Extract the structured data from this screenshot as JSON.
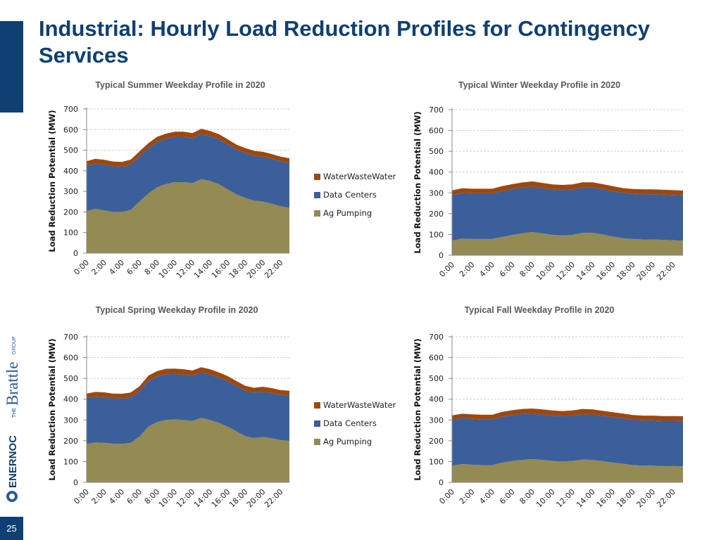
{
  "slide": {
    "title": "Industrial: Hourly Load Reduction Profiles for Contingency Services",
    "page_number": "25",
    "logos": {
      "company1": "ENERNOC",
      "company2_prefix": "THE",
      "company2": "Brattle",
      "company2_suffix": "GROUP"
    }
  },
  "colors": {
    "accent": "#0f3f73",
    "ag_pumping": "#948a54",
    "data_centers": "#3a5f9b",
    "water_waste_water": "#9e480e"
  },
  "chart_data": [
    {
      "type": "area",
      "stacked": true,
      "title": "Typical Summer Weekday Profile in 2020",
      "ylabel": "Load Reduction Potential (MW)",
      "xlabel": "",
      "ylim": [
        0,
        700
      ],
      "yticks": [
        "0",
        "100",
        "200",
        "300",
        "400",
        "500",
        "600",
        "700"
      ],
      "x_ticklabels": [
        "0:00",
        "2:00",
        "4:00",
        "6:00",
        "8:00",
        "10:00",
        "12:00",
        "14:00",
        "16:00",
        "18:00",
        "20:00",
        "22:00"
      ],
      "grid": true,
      "legend_position": "right",
      "series": [
        {
          "name": "Ag Pumping",
          "color": "#948a54",
          "values": [
            205,
            215,
            208,
            200,
            200,
            210,
            250,
            290,
            320,
            335,
            345,
            345,
            340,
            360,
            350,
            335,
            310,
            285,
            268,
            255,
            250,
            240,
            228,
            220
          ]
        },
        {
          "name": "Data Centers",
          "color": "#3a5f9b",
          "values": [
            220,
            220,
            222,
            222,
            220,
            220,
            220,
            220,
            220,
            220,
            220,
            220,
            218,
            218,
            218,
            218,
            218,
            218,
            218,
            218,
            218,
            218,
            218,
            218
          ]
        },
        {
          "name": "WaterWasteWater",
          "color": "#9e480e",
          "values": [
            22,
            23,
            23,
            23,
            23,
            24,
            24,
            24,
            25,
            25,
            25,
            25,
            25,
            26,
            25,
            25,
            25,
            24,
            24,
            24,
            24,
            23,
            23,
            23
          ]
        }
      ]
    },
    {
      "type": "area",
      "stacked": true,
      "title": "Typical Winter Weekday Profile in 2020",
      "ylabel": "Load Reduction Potential (MW)",
      "xlabel": "",
      "ylim": [
        0,
        700
      ],
      "yticks": [
        "0",
        "100",
        "200",
        "300",
        "400",
        "500",
        "600",
        "700"
      ],
      "x_ticklabels": [
        "0:00",
        "2:00",
        "4:00",
        "6:00",
        "8:00",
        "10:00",
        "12:00",
        "14:00",
        "16:00",
        "18:00",
        "20:00",
        "22:00"
      ],
      "grid": true,
      "series": [
        {
          "name": "Ag Pumping",
          "color": "#948a54",
          "values": [
            70,
            80,
            78,
            78,
            78,
            88,
            98,
            105,
            112,
            105,
            98,
            95,
            98,
            108,
            108,
            100,
            90,
            82,
            78,
            76,
            76,
            74,
            72,
            70
          ]
        },
        {
          "name": "Data Centers",
          "color": "#3a5f9b",
          "values": [
            220,
            220,
            220,
            220,
            220,
            220,
            220,
            220,
            218,
            218,
            218,
            218,
            218,
            218,
            218,
            218,
            218,
            218,
            218,
            218,
            218,
            218,
            218,
            218
          ]
        },
        {
          "name": "WaterWasteWater",
          "color": "#9e480e",
          "values": [
            22,
            22,
            22,
            22,
            22,
            24,
            24,
            25,
            25,
            25,
            25,
            25,
            25,
            25,
            25,
            24,
            24,
            23,
            23,
            23,
            23,
            23,
            23,
            23
          ]
        }
      ]
    },
    {
      "type": "area",
      "stacked": true,
      "title": "Typical Spring Weekday Profile in 2020",
      "ylabel": "Load Reduction Potential (MW)",
      "xlabel": "",
      "ylim": [
        0,
        700
      ],
      "yticks": [
        "0",
        "100",
        "200",
        "300",
        "400",
        "500",
        "600",
        "700"
      ],
      "x_ticklabels": [
        "0:00",
        "2:00",
        "4:00",
        "6:00",
        "8:00",
        "10:00",
        "12:00",
        "14:00",
        "16:00",
        "18:00",
        "20:00",
        "22:00"
      ],
      "grid": true,
      "legend_position": "right",
      "series": [
        {
          "name": "Ag Pumping",
          "color": "#948a54",
          "values": [
            185,
            192,
            190,
            186,
            185,
            190,
            220,
            268,
            290,
            300,
            303,
            300,
            295,
            310,
            300,
            286,
            268,
            245,
            222,
            213,
            218,
            212,
            203,
            200
          ]
        },
        {
          "name": "Data Centers",
          "color": "#3a5f9b",
          "values": [
            220,
            220,
            220,
            218,
            218,
            218,
            218,
            220,
            220,
            220,
            218,
            218,
            218,
            218,
            218,
            218,
            218,
            218,
            218,
            218,
            218,
            218,
            218,
            218
          ]
        },
        {
          "name": "WaterWasteWater",
          "color": "#9e480e",
          "values": [
            22,
            23,
            23,
            23,
            23,
            24,
            24,
            25,
            25,
            26,
            26,
            26,
            25,
            26,
            26,
            25,
            25,
            24,
            24,
            24,
            24,
            23,
            23,
            23
          ]
        }
      ]
    },
    {
      "type": "area",
      "stacked": true,
      "title": "Typical Fall Weekday Profile in 2020",
      "ylabel": "Load Reduction Potential (MW)",
      "xlabel": "",
      "ylim": [
        0,
        700
      ],
      "yticks": [
        "0",
        "100",
        "200",
        "300",
        "400",
        "500",
        "600",
        "700"
      ],
      "x_ticklabels": [
        "0:00",
        "2:00",
        "4:00",
        "6:00",
        "8:00",
        "10:00",
        "12:00",
        "14:00",
        "16:00",
        "18:00",
        "20:00",
        "22:00"
      ],
      "grid": true,
      "series": [
        {
          "name": "Ag Pumping",
          "color": "#948a54",
          "values": [
            80,
            88,
            85,
            83,
            83,
            95,
            103,
            108,
            112,
            108,
            103,
            100,
            103,
            110,
            108,
            102,
            95,
            90,
            83,
            80,
            80,
            78,
            78,
            77
          ]
        },
        {
          "name": "Data Centers",
          "color": "#3a5f9b",
          "values": [
            220,
            220,
            220,
            220,
            220,
            220,
            220,
            220,
            218,
            218,
            218,
            218,
            218,
            218,
            218,
            218,
            218,
            218,
            218,
            218,
            218,
            218,
            218,
            218
          ]
        },
        {
          "name": "WaterWasteWater",
          "color": "#9e480e",
          "values": [
            22,
            22,
            22,
            22,
            22,
            24,
            24,
            25,
            25,
            25,
            25,
            25,
            25,
            25,
            25,
            24,
            24,
            23,
            23,
            23,
            23,
            23,
            23,
            23
          ]
        }
      ]
    }
  ]
}
